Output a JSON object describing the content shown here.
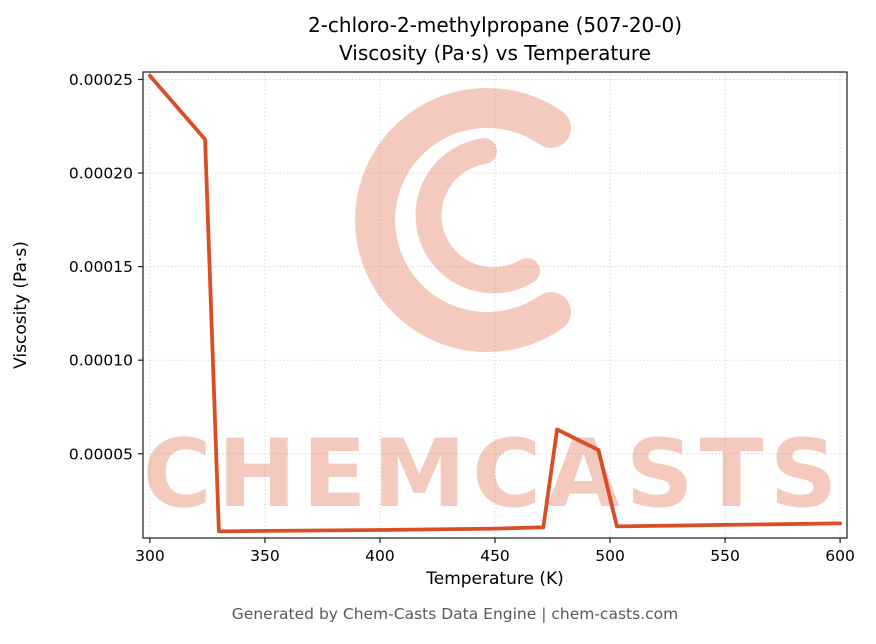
{
  "header": {
    "title_line1": "2-chloro-2-methylpropane (507-20-0)",
    "title_line2": "Viscosity (Pa·s) vs Temperature"
  },
  "watermark_text": "CHEMCASTS",
  "footer_text": "Generated by Chem-Casts Data Engine | chem-casts.com",
  "chart_data": {
    "type": "line",
    "title": "2-chloro-2-methylpropane (507-20-0) — Viscosity (Pa·s) vs Temperature",
    "xlabel": "Temperature (K)",
    "ylabel": "Viscosity (Pa·s)",
    "xlim": [
      297,
      603
    ],
    "ylim": [
      5e-06,
      0.000254
    ],
    "x_ticks": [
      300,
      350,
      400,
      450,
      500,
      550,
      600
    ],
    "x_tick_labels": [
      "300",
      "350",
      "400",
      "450",
      "500",
      "550",
      "600"
    ],
    "y_ticks": [
      5e-05,
      0.0001,
      0.00015,
      0.0002,
      0.00025
    ],
    "y_tick_labels": [
      "0.00005",
      "0.00010",
      "0.00015",
      "0.00020",
      "0.00025"
    ],
    "grid": true,
    "legend": false,
    "line_color": "#d94e26",
    "watermark_color": "#e0532a",
    "series": [
      {
        "name": "Viscosity (Pa·s)",
        "x": [
          300,
          324,
          330,
          350,
          400,
          450,
          471,
          477,
          495,
          503,
          550,
          600
        ],
        "y": [
          0.000252,
          0.000218,
          8.5e-06,
          8.8e-06,
          9.3e-06,
          1e-05,
          1.07e-05,
          6.3e-05,
          5.2e-05,
          1.12e-05,
          1.2e-05,
          1.28e-05
        ]
      }
    ]
  }
}
